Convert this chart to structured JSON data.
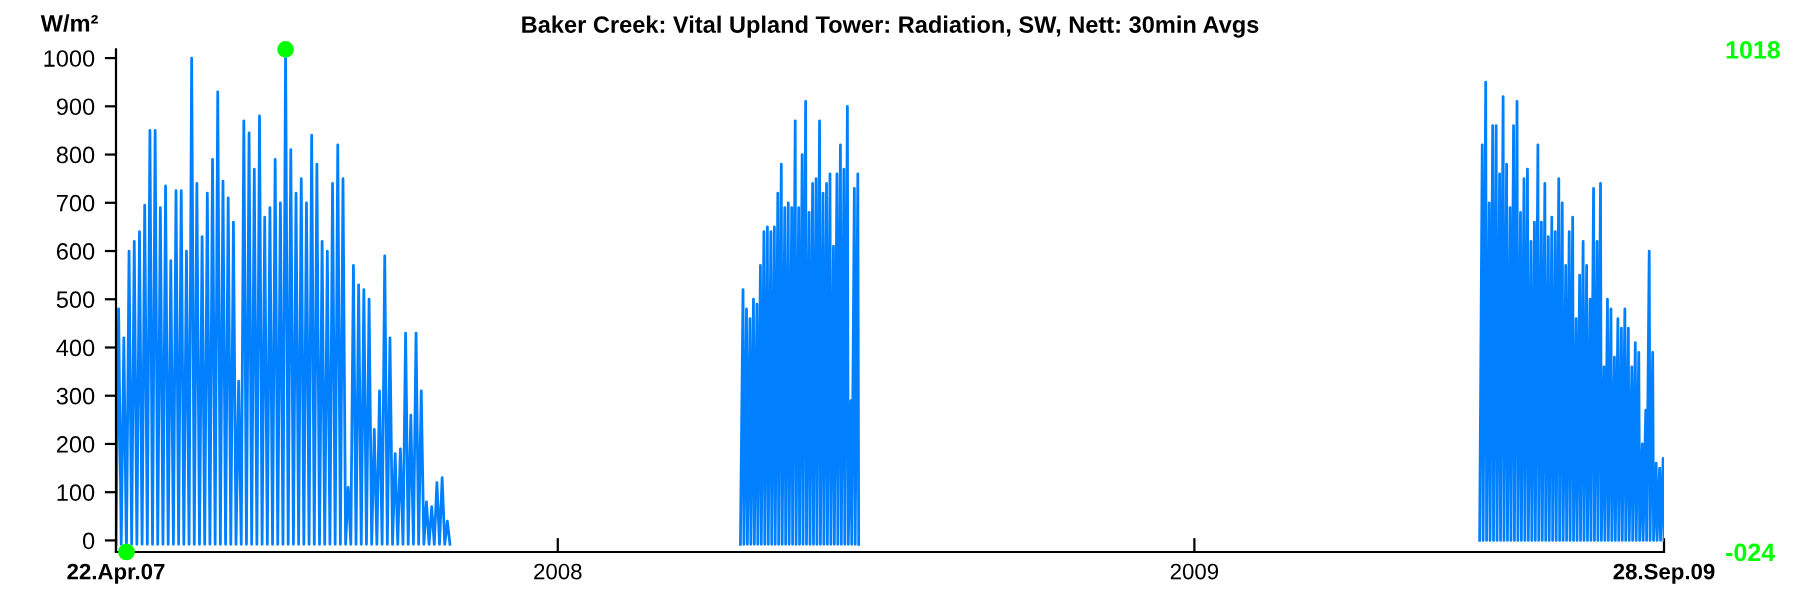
{
  "chart_data": {
    "type": "line",
    "title": "Baker Creek: Vital Upland Tower: Radiation, SW, Nett: 30min Avgs",
    "ylabel": "W/m²",
    "xlim": [
      "2007-04-22",
      "2009-09-28"
    ],
    "xticks": [
      {
        "value": "2007-04-22",
        "label": "22.Apr.07"
      },
      {
        "value": "2008-01-01",
        "label": "2008"
      },
      {
        "value": "2009-01-01",
        "label": "2009"
      },
      {
        "value": "2009-09-28",
        "label": "28.Sep.09"
      }
    ],
    "ylim": [
      -24,
      1018
    ],
    "yticks": [
      0,
      100,
      200,
      300,
      400,
      500,
      600,
      700,
      800,
      900,
      1000
    ],
    "y2lim": [
      -24,
      1018
    ],
    "y2ticks": [
      {
        "value": -24,
        "label": "-024"
      },
      {
        "value": 1018,
        "label": "1018"
      }
    ],
    "grid": false,
    "legend": false,
    "series": [
      {
        "color": "#0080ff",
        "x": [
          "2007-04-22",
          "2007-04-23T12:00",
          "2007-04-25",
          "2007-04-26T12:00",
          "2007-04-28",
          "2007-04-29T12:00",
          "2007-05-01",
          "2007-05-02T12:00",
          "2007-05-04",
          "2007-05-05T12:00",
          "2007-05-07",
          "2007-05-08T12:00",
          "2007-05-10",
          "2007-05-11T12:00",
          "2007-05-13",
          "2007-05-14T12:00",
          "2007-05-16",
          "2007-05-17T12:00",
          "2007-05-19",
          "2007-05-20T12:00",
          "2007-05-22",
          "2007-05-23T12:00",
          "2007-05-25",
          "2007-05-26T12:00",
          "2007-05-28",
          "2007-05-29T12:00",
          "2007-05-31",
          "2007-06-01T12:00",
          "2007-06-03",
          "2007-06-04T12:00",
          "2007-06-06",
          "2007-06-07T12:00",
          "2007-06-09",
          "2007-06-10T12:00",
          "2007-06-12",
          "2007-06-13T12:00",
          "2007-06-15",
          "2007-06-16T12:00",
          "2007-06-18",
          "2007-06-19T12:00",
          "2007-06-21",
          "2007-06-22T12:00",
          "2007-06-24",
          "2007-06-25T12:00",
          "2007-06-27",
          "2007-06-28T12:00",
          "2007-06-30",
          "2007-07-01T12:00",
          "2007-07-03",
          "2007-07-04T12:00",
          "2007-07-06",
          "2007-07-07T12:00",
          "2007-07-09",
          "2007-07-10T12:00",
          "2007-07-12",
          "2007-07-13T12:00",
          "2007-07-15",
          "2007-07-16T12:00",
          "2007-07-18",
          "2007-07-19T12:00",
          "2007-07-21",
          "2007-07-22T12:00",
          "2007-07-24",
          "2007-07-25T12:00",
          "2007-07-27",
          "2007-07-28T12:00",
          "2007-07-30",
          "2007-07-31T12:00",
          "2007-08-02",
          "2007-08-03T12:00",
          "2007-08-05",
          "2007-08-06T12:00",
          "2007-08-08",
          "2007-08-09T12:00",
          "2007-08-11",
          "2007-08-12T12:00",
          "2007-08-14",
          "2007-08-15T12:00",
          "2007-08-17",
          "2007-08-18T12:00",
          "2007-08-20",
          "2007-08-21T12:00",
          "2007-08-23",
          "2007-08-24T12:00",
          "2007-08-26",
          "2007-08-27T12:00",
          "2007-08-29",
          "2007-08-30T12:00",
          "2007-09-01",
          "2007-09-02T12:00",
          "2007-09-04",
          "2007-09-05T12:00",
          "2007-09-07",
          "2007-09-08T12:00",
          "2007-09-10",
          "2007-09-11T12:00",
          "2007-09-13",
          "2007-09-14T12:00",
          "2007-09-16",
          "2007-09-17T12:00",
          "2007-09-19",
          "2007-09-20T12:00",
          "2007-09-22",
          "2007-09-23T12:00",
          "2007-09-25",
          "2007-09-26T12:00",
          "2007-09-28",
          "2007-09-29T12:00",
          "2007-10-01",
          "2007-10-02T12:00",
          "2007-10-04",
          "2007-10-05T12:00",
          "2007-10-07",
          "2007-10-08T12:00",
          "2007-10-10",
          "2007-10-11T12:00",
          "2007-10-13",
          "2007-10-14T12:00",
          "2007-10-16",
          "2007-10-17T12:00",
          "2007-10-19",
          "2007-10-20T12:00",
          "2007-10-22",
          "2007-10-23T12:00",
          "2007-10-25",
          "2007-10-26T12:00",
          "2007-10-28",
          "2007-10-29T12:00",
          "2007-10-31",
          "2008-01-01",
          "2008-04-15",
          "2008-04-16T12:00",
          "2008-04-17",
          "2008-04-18T12:00",
          "2008-04-19",
          "2008-04-20T12:00",
          "2008-04-21",
          "2008-04-22T12:00",
          "2008-04-23",
          "2008-04-24T12:00",
          "2008-04-25",
          "2008-04-26T12:00",
          "2008-04-27",
          "2008-04-28T12:00",
          "2008-04-29",
          "2008-04-30T12:00",
          "2008-05-01",
          "2008-05-02T12:00",
          "2008-05-03",
          "2008-05-04T12:00",
          "2008-05-05",
          "2008-05-06T12:00",
          "2008-05-07",
          "2008-05-08T12:00",
          "2008-05-09",
          "2008-05-10T12:00",
          "2008-05-11",
          "2008-05-12T12:00",
          "2008-05-13",
          "2008-05-14T12:00",
          "2008-05-15",
          "2008-05-16T12:00",
          "2008-05-17",
          "2008-05-18T12:00",
          "2008-05-19",
          "2008-05-20T12:00",
          "2008-05-21",
          "2008-05-22T12:00",
          "2008-05-23",
          "2008-05-24T12:00",
          "2008-05-25",
          "2008-05-26T12:00",
          "2008-05-27",
          "2008-05-28T12:00",
          "2008-05-29",
          "2008-05-30T12:00",
          "2008-05-31",
          "2008-06-01T12:00",
          "2008-06-02",
          "2008-06-03T12:00",
          "2008-06-04",
          "2008-06-05T12:00",
          "2008-06-06",
          "2008-06-07T12:00",
          "2008-06-08",
          "2008-06-09T12:00",
          "2008-06-10",
          "2008-06-11T12:00",
          "2008-06-12",
          "2008-06-13T12:00",
          "2008-06-14",
          "2008-06-15T12:00",
          "2008-06-16",
          "2008-06-17T12:00",
          "2008-06-18",
          "2008-06-19T12:00",
          "2008-06-20",
          "2008-06-21T12:00",
          "2008-06-22",
          "2009-01-01",
          "2009-06-14",
          "2009-06-15T12:00",
          "2009-06-16",
          "2009-06-17T12:00",
          "2009-06-18",
          "2009-06-19T12:00",
          "2009-06-20",
          "2009-06-21T12:00",
          "2009-06-22",
          "2009-06-23T12:00",
          "2009-06-24",
          "2009-06-25T12:00",
          "2009-06-26",
          "2009-06-27T12:00",
          "2009-06-28",
          "2009-06-29T12:00",
          "2009-06-30",
          "2009-07-01T12:00",
          "2009-07-02",
          "2009-07-03T12:00",
          "2009-07-04",
          "2009-07-05T12:00",
          "2009-07-06",
          "2009-07-07T12:00",
          "2009-07-08",
          "2009-07-09T12:00",
          "2009-07-10",
          "2009-07-11T12:00",
          "2009-07-12",
          "2009-07-13T12:00",
          "2009-07-14",
          "2009-07-15T12:00",
          "2009-07-16",
          "2009-07-17T12:00",
          "2009-07-18",
          "2009-07-19T12:00",
          "2009-07-20",
          "2009-07-21T12:00",
          "2009-07-22",
          "2009-07-23T12:00",
          "2009-07-24",
          "2009-07-25T12:00",
          "2009-07-26",
          "2009-07-27T12:00",
          "2009-07-28",
          "2009-07-29T12:00",
          "2009-07-30",
          "2009-07-31T12:00",
          "2009-08-01",
          "2009-08-02T12:00",
          "2009-08-03",
          "2009-08-04T12:00",
          "2009-08-05",
          "2009-08-06T12:00",
          "2009-08-07",
          "2009-08-08T12:00",
          "2009-08-09",
          "2009-08-10T12:00",
          "2009-08-11",
          "2009-08-12T12:00",
          "2009-08-13",
          "2009-08-14T12:00",
          "2009-08-15",
          "2009-08-16T12:00",
          "2009-08-17",
          "2009-08-18T12:00",
          "2009-08-19",
          "2009-08-20T12:00",
          "2009-08-21",
          "2009-08-22T12:00",
          "2009-08-23",
          "2009-08-24T12:00",
          "2009-08-25",
          "2009-08-26T12:00",
          "2009-08-27",
          "2009-08-28T12:00",
          "2009-08-29",
          "2009-08-30T12:00",
          "2009-08-31",
          "2009-09-01T12:00",
          "2009-09-02",
          "2009-09-03T12:00",
          "2009-09-04",
          "2009-09-05T12:00",
          "2009-09-06",
          "2009-09-07T12:00",
          "2009-09-08",
          "2009-09-09T12:00",
          "2009-09-10",
          "2009-09-11T12:00",
          "2009-09-12",
          "2009-09-13T12:00",
          "2009-09-14",
          "2009-09-15T12:00",
          "2009-09-16",
          "2009-09-17T12:00",
          "2009-09-18",
          "2009-09-19T12:00",
          "2009-09-20",
          "2009-09-21T12:00",
          "2009-09-22",
          "2009-09-23T12:00",
          "2009-09-24",
          "2009-09-25T12:00",
          "2009-09-26",
          "2009-09-27T12:00",
          "2009-09-28"
        ],
        "values": [
          -8,
          480,
          -8,
          420,
          -24,
          600,
          -8,
          620,
          -8,
          640,
          -8,
          695,
          -8,
          850,
          -8,
          850,
          -8,
          690,
          -8,
          735,
          -8,
          580,
          -8,
          725,
          -8,
          725,
          -8,
          600,
          -8,
          1000,
          -8,
          740,
          -8,
          630,
          -8,
          720,
          -8,
          790,
          -8,
          930,
          -8,
          745,
          -8,
          710,
          -8,
          660,
          -8,
          330,
          -8,
          870,
          -8,
          845,
          -8,
          770,
          -8,
          880,
          -8,
          670,
          -8,
          690,
          -8,
          790,
          -8,
          700,
          -8,
          1018,
          -8,
          810,
          -8,
          720,
          -8,
          750,
          -8,
          700,
          -8,
          840,
          -8,
          780,
          -8,
          620,
          -8,
          600,
          -8,
          740,
          -8,
          820,
          -8,
          750,
          -8,
          110,
          -8,
          570,
          -8,
          530,
          -8,
          520,
          -8,
          500,
          -8,
          230,
          -8,
          310,
          -8,
          590,
          -8,
          420,
          -8,
          180,
          -8,
          190,
          -8,
          430,
          -8,
          260,
          -8,
          430,
          -8,
          310,
          -8,
          80,
          -8,
          70,
          -8,
          120,
          -8,
          130,
          -8,
          40,
          -8,
          null,
          -8,
          520,
          -8,
          480,
          -8,
          460,
          -8,
          500,
          -8,
          490,
          -8,
          570,
          -8,
          640,
          -8,
          650,
          -8,
          640,
          -8,
          650,
          -8,
          720,
          -8,
          780,
          -8,
          690,
          -8,
          700,
          -8,
          690,
          -8,
          870,
          -8,
          690,
          -8,
          800,
          -8,
          910,
          -8,
          680,
          -8,
          740,
          -8,
          750,
          -8,
          870,
          -8,
          720,
          -8,
          740,
          -8,
          760,
          -8,
          610,
          -8,
          760,
          -8,
          820,
          -8,
          770,
          -8,
          900,
          -8,
          290,
          -8,
          730,
          -8,
          760,
          -8,
          null,
          0,
          820,
          0,
          950,
          0,
          700,
          0,
          860,
          0,
          860,
          0,
          760,
          0,
          920,
          0,
          780,
          0,
          690,
          0,
          860,
          0,
          910,
          0,
          680,
          0,
          750,
          0,
          770,
          0,
          620,
          0,
          660,
          0,
          820,
          0,
          660,
          0,
          740,
          0,
          630,
          0,
          670,
          0,
          640,
          0,
          750,
          0,
          700,
          0,
          570,
          0,
          640,
          0,
          670,
          0,
          460,
          0,
          550,
          0,
          620,
          0,
          570,
          0,
          500,
          0,
          730,
          0,
          620,
          0,
          740,
          0,
          360,
          0,
          500,
          0,
          480,
          0,
          380,
          0,
          460,
          0,
          440,
          0,
          480,
          0,
          440,
          0,
          360,
          0,
          410,
          0,
          390,
          0,
          200,
          0,
          270,
          0,
          600,
          0,
          390,
          0,
          160,
          0,
          150,
          0,
          170,
          0
        ]
      },
      {
        "type": "scatter",
        "axis": "y2",
        "color": "#00ff00",
        "marker": "circle",
        "x": [
          "2007-04-28",
          "2007-07-28T12:00"
        ],
        "values": [
          -24,
          1018
        ]
      }
    ]
  }
}
